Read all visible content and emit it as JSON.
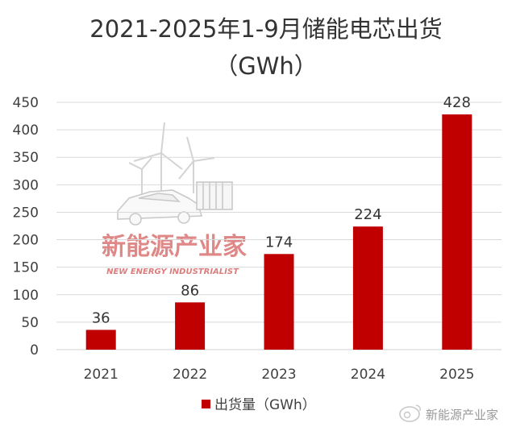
{
  "chart_data": {
    "type": "bar",
    "title_line1": "2021-2025年1-9月储能电芯出货",
    "title_line2": "（GWh）",
    "categories": [
      "2021",
      "2022",
      "2023",
      "2024",
      "2025"
    ],
    "series": [
      {
        "name": "出货量（GWh）",
        "values": [
          36,
          86,
          174,
          224,
          428
        ]
      }
    ],
    "ylim": [
      0,
      450
    ],
    "yticks": [
      0,
      50,
      100,
      150,
      200,
      250,
      300,
      350,
      400,
      450
    ],
    "xlabel": "",
    "ylabel": "",
    "grid": true,
    "legend": "bottom",
    "data_labels": true,
    "bar_color": "#c00000",
    "grid_color": "#d9d9d9"
  },
  "watermark": {
    "logo_text": "新能源产业家",
    "logo_subtext": "NEW ENERGY INDUSTRIALIST",
    "credit_text": "新能源产业家",
    "credit_icon": "weibo-icon"
  }
}
